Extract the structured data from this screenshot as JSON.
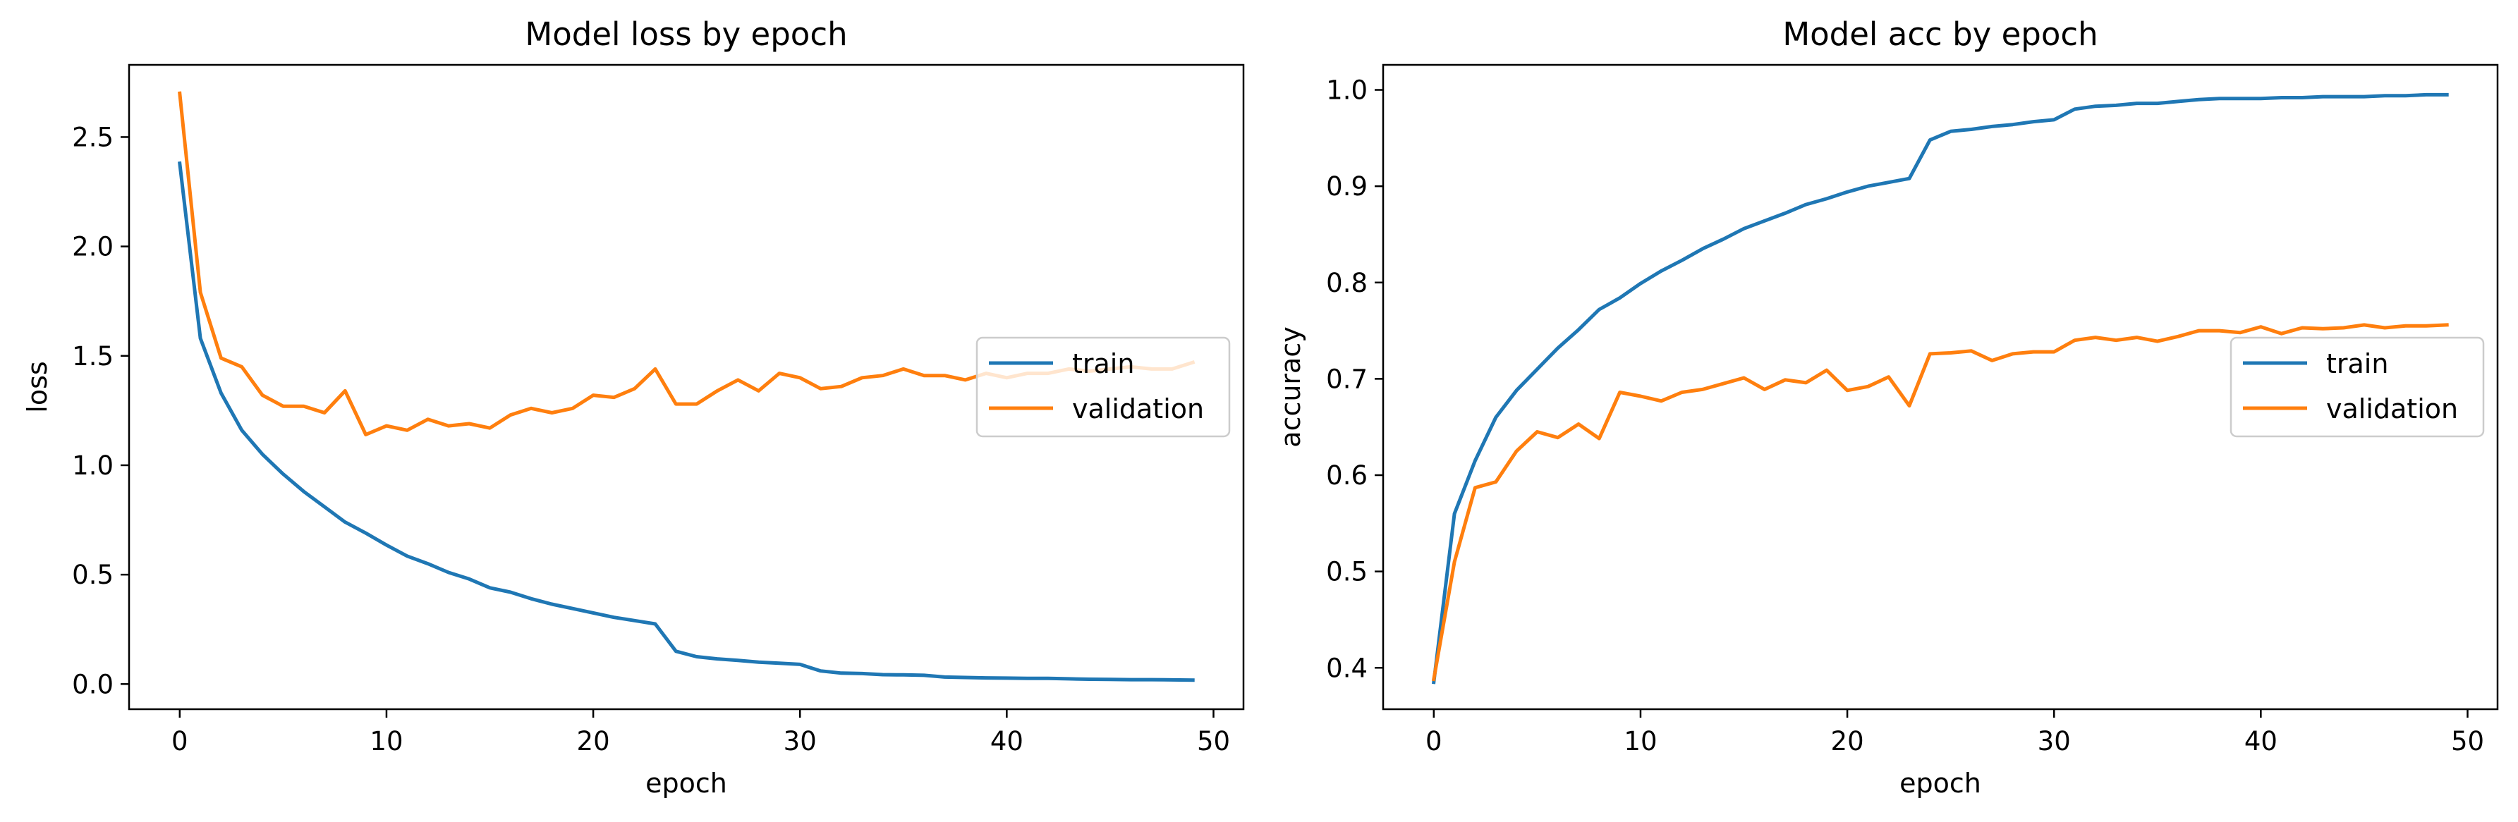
{
  "chart_data": [
    {
      "type": "line",
      "title": "Model loss by epoch",
      "xlabel": "epoch",
      "ylabel": "loss",
      "xlim": [
        -2.45,
        51.45
      ],
      "ylim": [
        -0.115,
        2.83
      ],
      "xticks": [
        0,
        10,
        20,
        30,
        40,
        50
      ],
      "yticks": [
        0.0,
        0.5,
        1.0,
        1.5,
        2.0,
        2.5
      ],
      "ytick_labels": [
        "0.0",
        "0.5",
        "1.0",
        "1.5",
        "2.0",
        "2.5"
      ],
      "grid": false,
      "legend_position": "center-right",
      "series": [
        {
          "name": "train",
          "color": "#1f77b4",
          "values": [
            2.38,
            1.58,
            1.33,
            1.16,
            1.05,
            0.96,
            0.88,
            0.81,
            0.74,
            0.69,
            0.635,
            0.585,
            0.55,
            0.51,
            0.48,
            0.44,
            0.42,
            0.39,
            0.365,
            0.345,
            0.325,
            0.305,
            0.29,
            0.275,
            0.15,
            0.125,
            0.115,
            0.108,
            0.1,
            0.095,
            0.09,
            0.06,
            0.05,
            0.048,
            0.043,
            0.042,
            0.04,
            0.032,
            0.03,
            0.028,
            0.027,
            0.026,
            0.026,
            0.024,
            0.022,
            0.021,
            0.02,
            0.02,
            0.019,
            0.018
          ]
        },
        {
          "name": "validation",
          "color": "#ff7f0e",
          "values": [
            2.7,
            1.79,
            1.49,
            1.45,
            1.32,
            1.27,
            1.27,
            1.24,
            1.34,
            1.14,
            1.18,
            1.16,
            1.21,
            1.18,
            1.19,
            1.17,
            1.23,
            1.26,
            1.24,
            1.26,
            1.32,
            1.31,
            1.35,
            1.44,
            1.28,
            1.28,
            1.34,
            1.39,
            1.34,
            1.42,
            1.4,
            1.35,
            1.36,
            1.4,
            1.41,
            1.44,
            1.41,
            1.41,
            1.39,
            1.42,
            1.4,
            1.42,
            1.42,
            1.44,
            1.43,
            1.44,
            1.45,
            1.44,
            1.44,
            1.47
          ]
        }
      ]
    },
    {
      "type": "line",
      "title": "Model acc by epoch",
      "xlabel": "epoch",
      "ylabel": "accuracy",
      "xlim": [
        -2.45,
        51.45
      ],
      "ylim": [
        0.357,
        1.026
      ],
      "xticks": [
        0,
        10,
        20,
        30,
        40,
        50
      ],
      "yticks": [
        0.4,
        0.5,
        0.6,
        0.7,
        0.8,
        0.9,
        1.0
      ],
      "ytick_labels": [
        "0.4",
        "0.5",
        "0.6",
        "0.7",
        "0.8",
        "0.9",
        "1.0"
      ],
      "grid": false,
      "legend_position": "center-right",
      "series": [
        {
          "name": "train",
          "color": "#1f77b4",
          "values": [
            0.385,
            0.56,
            0.615,
            0.66,
            0.688,
            0.71,
            0.732,
            0.751,
            0.772,
            0.784,
            0.799,
            0.812,
            0.823,
            0.835,
            0.845,
            0.856,
            0.864,
            0.872,
            0.881,
            0.887,
            0.894,
            0.9,
            0.904,
            0.908,
            0.948,
            0.957,
            0.959,
            0.962,
            0.964,
            0.967,
            0.969,
            0.98,
            0.983,
            0.984,
            0.986,
            0.986,
            0.988,
            0.99,
            0.991,
            0.991,
            0.991,
            0.992,
            0.992,
            0.993,
            0.993,
            0.993,
            0.994,
            0.994,
            0.995,
            0.995
          ]
        },
        {
          "name": "validation",
          "color": "#ff7f0e",
          "values": [
            0.388,
            0.51,
            0.587,
            0.593,
            0.625,
            0.645,
            0.639,
            0.653,
            0.638,
            0.686,
            0.682,
            0.677,
            0.686,
            0.689,
            0.695,
            0.701,
            0.689,
            0.699,
            0.696,
            0.709,
            0.688,
            0.692,
            0.702,
            0.672,
            0.726,
            0.727,
            0.729,
            0.719,
            0.726,
            0.728,
            0.728,
            0.74,
            0.743,
            0.74,
            0.743,
            0.739,
            0.744,
            0.75,
            0.75,
            0.748,
            0.754,
            0.747,
            0.753,
            0.752,
            0.753,
            0.756,
            0.753,
            0.755,
            0.755,
            0.756
          ]
        }
      ]
    }
  ]
}
